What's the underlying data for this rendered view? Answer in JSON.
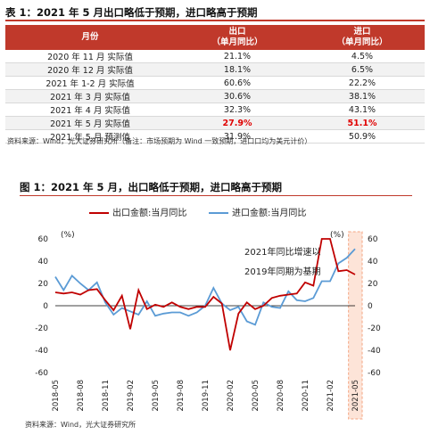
{
  "table": {
    "title": "表 1：2021 年 5 月出口略低于预期，进口略高于预期",
    "headers": {
      "month": "月份",
      "export": "出口\n（单月同比）",
      "import": "进口\n（单月同比）"
    },
    "rows": [
      {
        "month": "2020 年 11 月  实际值",
        "export": "21.1%",
        "import": "4.5%"
      },
      {
        "month": "2020 年 12 月  实际值",
        "export": "18.1%",
        "import": "6.5%"
      },
      {
        "month": "2021 年 1-2 月  实际值",
        "export": "60.6%",
        "import": "22.2%"
      },
      {
        "month": "2021 年 3 月  实际值",
        "export": "30.6%",
        "import": "38.1%"
      },
      {
        "month": "2021 年 4 月  实际值",
        "export": "32.3%",
        "import": "43.1%"
      },
      {
        "month": "2021 年 5 月  实际值",
        "export": "27.9%",
        "import": "51.1%",
        "highlight": true
      },
      {
        "month": "2021 年 5 月  预测值",
        "export": "31.9%",
        "import": "50.9%"
      }
    ],
    "source": "资料来源：Wind，光大证券研究所（备注：市场预期为 Wind 一致预期，进口口均为美元计价）"
  },
  "figure": {
    "title": "图 1：2021 年 5 月，出口略低于预期，进口略高于预期",
    "source": "资料来源：Wind，光大证券研究所",
    "watermark": "①"
  },
  "chart_data": {
    "type": "line",
    "legend_placement": "top",
    "legend": [
      "出口金额:当月同比",
      "进口金额:当月同比"
    ],
    "left_unit": "(%)",
    "right_unit": "(%)",
    "annotation": [
      "2021年同比增速以",
      "2019年同期为基期"
    ],
    "ylim": [
      -60,
      60
    ],
    "yticks": [
      -60,
      -40,
      -20,
      0,
      20,
      40,
      60
    ],
    "xticks": [
      "2018-05",
      "2018-08",
      "2018-11",
      "2019-02",
      "2019-05",
      "2019-08",
      "2019-11",
      "2020-02",
      "2020-05",
      "2020-08",
      "2020-11",
      "2021-02",
      "2021-05"
    ],
    "colors": {
      "export": "#c00000",
      "import": "#5b9bd5",
      "highlight_box": "#f4a582"
    },
    "x": [
      "2018-05",
      "2018-06",
      "2018-07",
      "2018-08",
      "2018-09",
      "2018-10",
      "2018-11",
      "2018-12",
      "2019-01",
      "2019-02",
      "2019-03",
      "2019-04",
      "2019-05",
      "2019-06",
      "2019-07",
      "2019-08",
      "2019-09",
      "2019-10",
      "2019-11",
      "2019-12",
      "2020-01",
      "2020-02",
      "2020-03",
      "2020-04",
      "2020-05",
      "2020-06",
      "2020-07",
      "2020-08",
      "2020-09",
      "2020-10",
      "2020-11",
      "2020-12",
      "2021-01",
      "2021-02",
      "2021-03",
      "2021-04",
      "2021-05"
    ],
    "series": [
      {
        "name": "出口金额:当月同比",
        "key": "export",
        "values": [
          12,
          11,
          12,
          10,
          14,
          15,
          5,
          -4,
          9,
          -21,
          14,
          -3,
          1,
          -1,
          3,
          -1,
          -3,
          -1,
          -1,
          8,
          2,
          -40,
          -7,
          3,
          -3,
          0,
          7,
          9,
          10,
          11,
          21,
          18,
          60,
          60,
          31,
          32,
          28
        ]
      },
      {
        "name": "进口金额:当月同比",
        "key": "import",
        "values": [
          26,
          14,
          27,
          20,
          14,
          21,
          3,
          -8,
          -2,
          -5,
          -8,
          4,
          -9,
          -7,
          -6,
          -6,
          -9,
          -6,
          0,
          16,
          2,
          -4,
          -1,
          -14,
          -17,
          3,
          -1,
          -2,
          13,
          5,
          4,
          7,
          22,
          22,
          38,
          43,
          51
        ]
      }
    ]
  }
}
